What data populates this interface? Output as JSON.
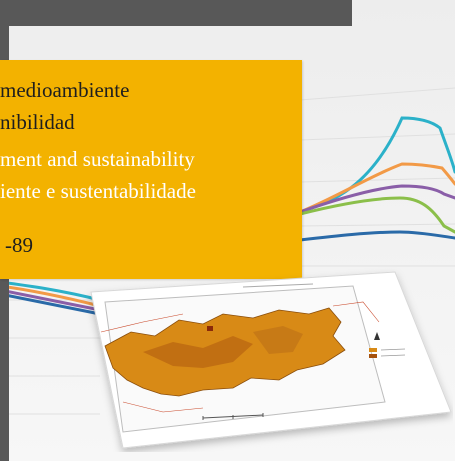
{
  "panel": {
    "title_es_line1": "medioambiente",
    "title_es_line2": "nibilidad",
    "title_en": "ment and sustainability",
    "title_pt": "iente e sustentabilidade",
    "pages": "-89"
  },
  "colors": {
    "panel_bg": "#f3b200",
    "dark_bar": "#585858",
    "en_text": "#ffffff",
    "main_text": "#1e1e1e",
    "line_cyan": "#2bb1c9",
    "line_orange": "#f29a47",
    "line_purple": "#8a5ea8",
    "line_green": "#8bbf4a",
    "line_blue": "#2a6aa8",
    "map_fill": "#d88a16",
    "map_dark": "#a6520e"
  }
}
